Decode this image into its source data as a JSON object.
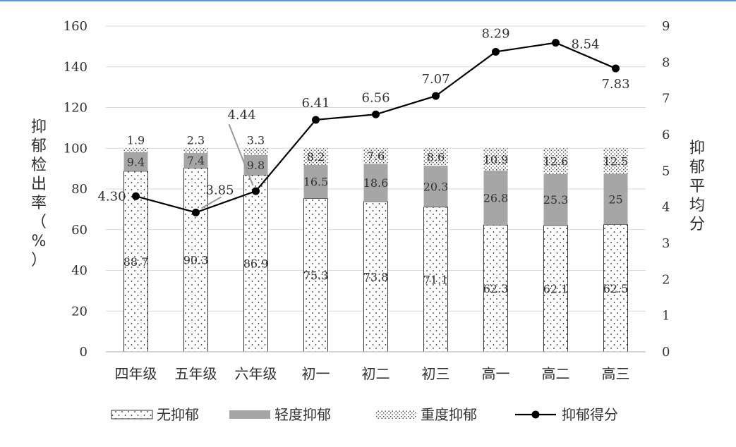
{
  "chart_data": {
    "type": "bar",
    "categories": [
      "四年级",
      "五年级",
      "六年级",
      "初一",
      "初二",
      "初三",
      "高一",
      "高二",
      "高三"
    ],
    "series": [
      {
        "name": "无抑郁",
        "values": [
          88.7,
          90.3,
          86.9,
          75.3,
          73.8,
          71.1,
          62.3,
          62.1,
          62.5
        ],
        "labels": [
          "88.7",
          "90.3",
          "86.9",
          "75.3",
          "73.8",
          "71.1",
          "62.3",
          "62.1",
          "62.5"
        ]
      },
      {
        "name": "轻度抑郁",
        "values": [
          9.4,
          7.4,
          9.8,
          16.5,
          18.6,
          20.3,
          26.8,
          25.3,
          25
        ],
        "labels": [
          "9.4",
          "7.4",
          "9.8",
          "16.5",
          "18.6",
          "20.3",
          "26.8",
          "25.3",
          "25"
        ]
      },
      {
        "name": "重度抑郁",
        "values": [
          1.9,
          2.3,
          3.3,
          8.2,
          7.6,
          8.6,
          10.9,
          12.6,
          12.5
        ],
        "labels": [
          "1.9",
          "2.3",
          "3.3",
          "8.2",
          "7.6",
          "8.6",
          "10.9",
          "12.6",
          "12.5"
        ]
      },
      {
        "name": "抑郁得分",
        "type": "line",
        "axis": "right",
        "values": [
          4.3,
          3.85,
          4.44,
          6.41,
          6.56,
          7.07,
          8.29,
          8.54,
          7.83
        ],
        "labels": [
          "4.30",
          "3.85",
          "4.44",
          "6.41",
          "6.56",
          "7.07",
          "8.29",
          "8.54",
          "7.83"
        ]
      }
    ],
    "ylabel": "抑郁检出率（%）",
    "y2label": "抑郁平均分",
    "ylim": [
      0,
      160
    ],
    "y2lim": [
      0,
      9
    ],
    "yticks": [
      "0",
      "20",
      "40",
      "60",
      "80",
      "100",
      "120",
      "140",
      "160"
    ],
    "y2ticks": [
      "0",
      "1",
      "2",
      "3",
      "4",
      "5",
      "6",
      "7",
      "8",
      "9"
    ],
    "grid": true,
    "legend_position": "bottom",
    "colors": {
      "mild": "#a6a6a6",
      "line": "#000000",
      "grid": "#d9d9d9"
    }
  }
}
